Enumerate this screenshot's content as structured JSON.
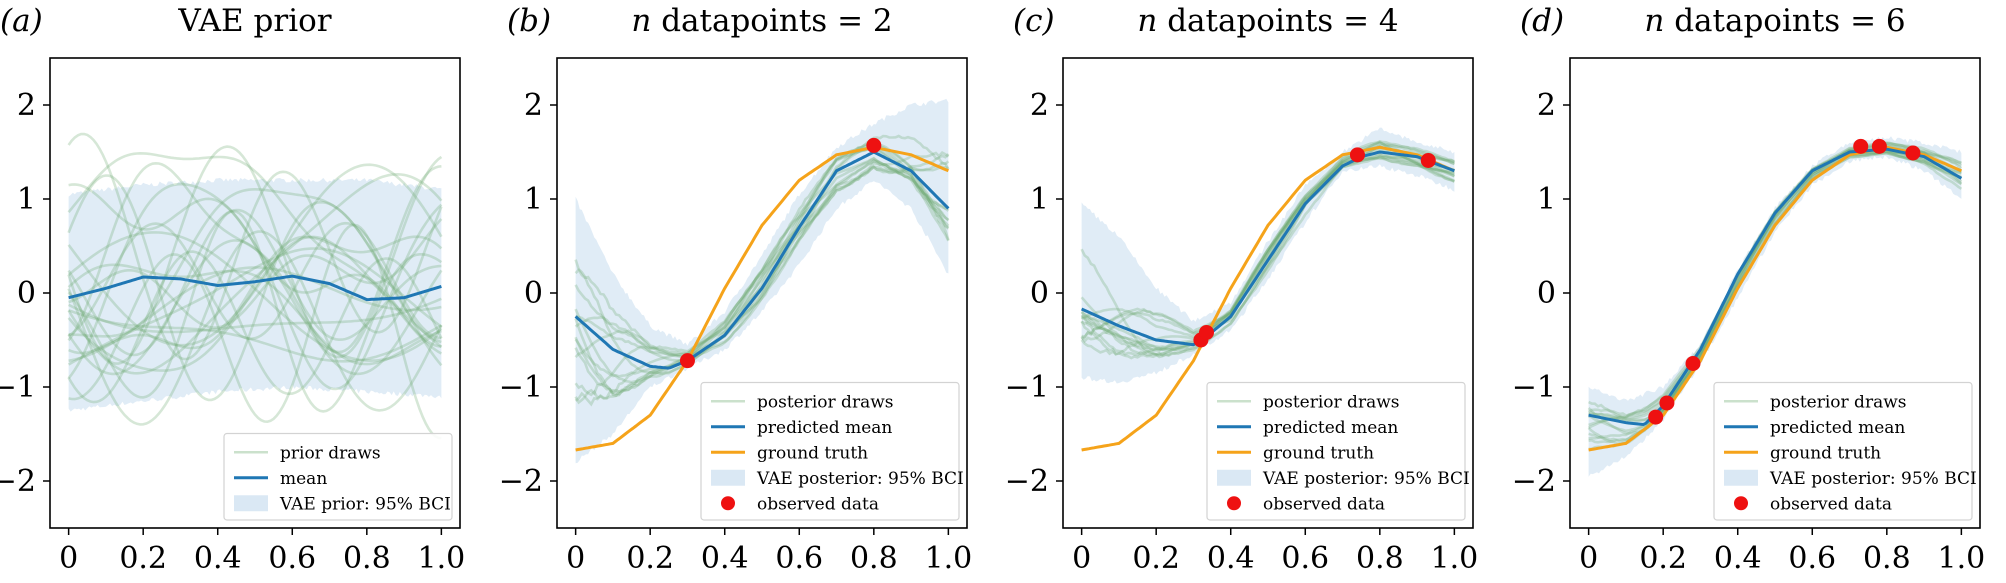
{
  "colors": {
    "draw": "#6aaa6e",
    "band": "#d6e6f3",
    "mean": "#1f77b4",
    "truth": "#f5a31a",
    "observed": "#ee1111"
  },
  "axes": {
    "xlim": [
      -0.05,
      1.05
    ],
    "ylim": [
      -2.5,
      2.5
    ],
    "xticks": [
      0,
      0.2,
      0.4,
      0.6,
      0.8,
      1.0
    ],
    "xtick_labels": [
      "0",
      "0.2",
      "0.4",
      "0.6",
      "0.8",
      "1.0"
    ],
    "yticks": [
      -2,
      -1,
      0,
      1,
      2
    ],
    "ytick_labels": [
      "−2",
      "−1",
      "0",
      "1",
      "2"
    ]
  },
  "chart_data": [
    {
      "type": "line",
      "panel_label": "(a)",
      "title": "VAE prior",
      "legend_position": "lower-right",
      "legend": [
        "prior draws",
        "mean",
        "VAE prior: 95% BCI"
      ],
      "mean": {
        "x": [
          0,
          0.1,
          0.2,
          0.3,
          0.4,
          0.5,
          0.6,
          0.7,
          0.8,
          0.9,
          1.0
        ],
        "y": [
          -0.05,
          0.05,
          0.17,
          0.15,
          0.08,
          0.12,
          0.18,
          0.1,
          -0.07,
          -0.05,
          0.07
        ]
      },
      "band": {
        "x": [
          0,
          0.2,
          0.4,
          0.6,
          0.8,
          1.0
        ],
        "lower": [
          -1.25,
          -1.15,
          -1.05,
          -1.0,
          -1.05,
          -1.1
        ],
        "upper": [
          1.05,
          1.15,
          1.2,
          1.2,
          1.2,
          1.1
        ]
      }
    },
    {
      "type": "line",
      "panel_label": "(b)",
      "title_italic": "n",
      "title": " datapoints = 2",
      "legend_position": "lower-right",
      "legend": [
        "posterior draws",
        "predicted mean",
        "ground truth",
        "VAE posterior: 95% BCI",
        "observed data"
      ],
      "mean": {
        "x": [
          0,
          0.1,
          0.2,
          0.25,
          0.3,
          0.4,
          0.5,
          0.6,
          0.7,
          0.8,
          0.9,
          1.0
        ],
        "y": [
          -0.25,
          -0.6,
          -0.78,
          -0.8,
          -0.72,
          -0.45,
          0.05,
          0.7,
          1.3,
          1.5,
          1.3,
          0.9
        ]
      },
      "truth": {
        "x": [
          0,
          0.1,
          0.2,
          0.3,
          0.4,
          0.5,
          0.6,
          0.7,
          0.8,
          0.9,
          1.0
        ],
        "y": [
          -1.67,
          -1.6,
          -1.3,
          -0.72,
          0.05,
          0.72,
          1.2,
          1.47,
          1.55,
          1.47,
          1.3
        ]
      },
      "band": {
        "x": [
          0,
          0.1,
          0.2,
          0.3,
          0.4,
          0.5,
          0.6,
          0.7,
          0.8,
          0.9,
          1.0
        ],
        "lower": [
          -1.8,
          -1.5,
          -1.0,
          -0.8,
          -0.6,
          -0.2,
          0.3,
          0.9,
          1.2,
          0.9,
          0.2
        ],
        "upper": [
          1.0,
          0.2,
          -0.35,
          -0.55,
          -0.2,
          0.4,
          1.05,
          1.55,
          1.8,
          2.0,
          2.05
        ]
      },
      "observed": {
        "x": [
          0.3,
          0.8
        ],
        "y": [
          -0.72,
          1.57
        ]
      }
    },
    {
      "type": "line",
      "panel_label": "(c)",
      "title_italic": "n",
      "title": " datapoints = 4",
      "legend_position": "lower-right",
      "legend": [
        "posterior draws",
        "predicted mean",
        "ground truth",
        "VAE posterior: 95% BCI",
        "observed data"
      ],
      "mean": {
        "x": [
          0,
          0.1,
          0.2,
          0.3,
          0.33,
          0.4,
          0.5,
          0.6,
          0.7,
          0.75,
          0.8,
          0.9,
          1.0
        ],
        "y": [
          -0.17,
          -0.35,
          -0.5,
          -0.55,
          -0.48,
          -0.25,
          0.35,
          0.95,
          1.35,
          1.45,
          1.5,
          1.45,
          1.3
        ]
      },
      "truth": {
        "x": [
          0,
          0.1,
          0.2,
          0.3,
          0.4,
          0.5,
          0.6,
          0.7,
          0.8,
          0.9,
          1.0
        ],
        "y": [
          -1.67,
          -1.6,
          -1.3,
          -0.72,
          0.05,
          0.72,
          1.2,
          1.47,
          1.55,
          1.47,
          1.3
        ]
      },
      "band": {
        "x": [
          0,
          0.1,
          0.2,
          0.3,
          0.4,
          0.5,
          0.6,
          0.7,
          0.8,
          0.9,
          1.0
        ],
        "lower": [
          -0.9,
          -0.95,
          -0.85,
          -0.65,
          -0.4,
          0.15,
          0.75,
          1.3,
          1.35,
          1.25,
          1.1
        ],
        "upper": [
          0.95,
          0.6,
          0.05,
          -0.3,
          -0.1,
          0.55,
          1.15,
          1.5,
          1.75,
          1.6,
          1.5
        ]
      },
      "observed": {
        "x": [
          0.32,
          0.335,
          0.74,
          0.93
        ],
        "y": [
          -0.5,
          -0.42,
          1.47,
          1.41
        ]
      }
    },
    {
      "type": "line",
      "panel_label": "(d)",
      "title_italic": "n",
      "title": " datapoints = 6",
      "legend_position": "lower-right",
      "legend": [
        "posterior draws",
        "predicted mean",
        "ground truth",
        "VAE posterior: 95% BCI",
        "observed data"
      ],
      "mean": {
        "x": [
          0,
          0.1,
          0.15,
          0.2,
          0.3,
          0.4,
          0.5,
          0.6,
          0.7,
          0.8,
          0.9,
          1.0
        ],
        "y": [
          -1.3,
          -1.38,
          -1.4,
          -1.2,
          -0.6,
          0.2,
          0.85,
          1.3,
          1.5,
          1.53,
          1.45,
          1.22
        ]
      },
      "truth": {
        "x": [
          0,
          0.1,
          0.2,
          0.3,
          0.4,
          0.5,
          0.6,
          0.7,
          0.8,
          0.9,
          1.0
        ],
        "y": [
          -1.67,
          -1.6,
          -1.3,
          -0.72,
          0.05,
          0.72,
          1.2,
          1.47,
          1.55,
          1.47,
          1.3
        ]
      },
      "band": {
        "x": [
          0,
          0.1,
          0.2,
          0.3,
          0.4,
          0.5,
          0.6,
          0.7,
          0.8,
          0.9,
          1.0
        ],
        "lower": [
          -1.95,
          -1.75,
          -1.35,
          -0.75,
          -0.05,
          0.65,
          1.15,
          1.4,
          1.45,
          1.3,
          1.0
        ],
        "upper": [
          -1.0,
          -1.15,
          -1.0,
          -0.55,
          0.25,
          0.9,
          1.35,
          1.6,
          1.65,
          1.6,
          1.5
        ]
      },
      "observed": {
        "x": [
          0.18,
          0.21,
          0.28,
          0.73,
          0.78,
          0.87
        ],
        "y": [
          -1.32,
          -1.17,
          -0.75,
          1.56,
          1.56,
          1.49
        ]
      }
    }
  ]
}
